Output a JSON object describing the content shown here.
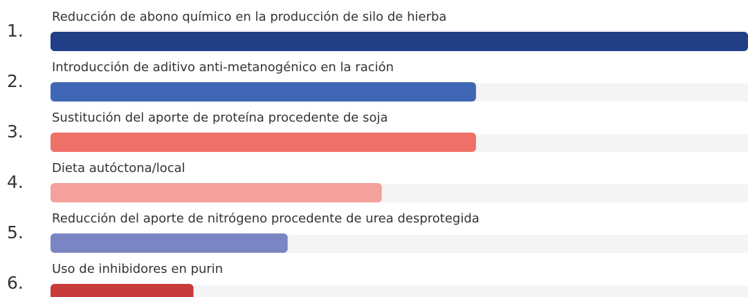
{
  "chart_data": {
    "type": "bar",
    "orientation": "horizontal",
    "ranks": [
      "1.",
      "2.",
      "3.",
      "4.",
      "5.",
      "6."
    ],
    "categories": [
      "Reducción de abono químico en la producción de silo de hierba",
      "Introducción de aditivo anti-metanogénico en la ración",
      "Sustitución del aporte de proteína procedente de soja",
      "Dieta autóctona/local",
      "Reducción del aporte de nitrógeno procedente de urea desprotegida",
      "Uso de inhibidores en purin"
    ],
    "values": [
      100,
      61,
      61,
      47.5,
      34,
      20.5
    ],
    "colors": [
      "#213f86",
      "#4067b5",
      "#ef6f69",
      "#f4a19e",
      "#7c85c3",
      "#c93a3c"
    ],
    "track_color": "#f4f4f4",
    "xlim": [
      0,
      100
    ]
  }
}
